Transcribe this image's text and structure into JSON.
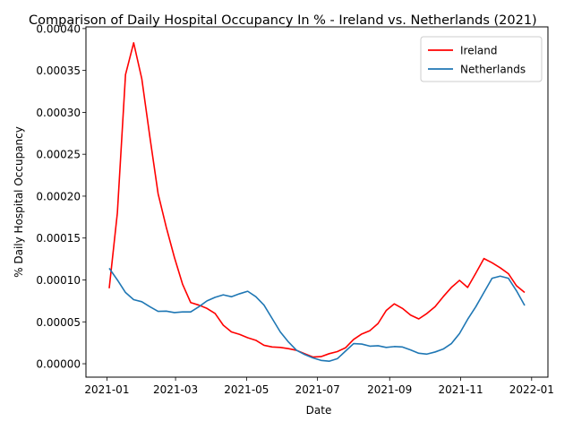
{
  "chart_data": {
    "type": "line",
    "title": "Comparison of Daily Hospital Occupancy In % - Ireland vs. Netherlands (2021)",
    "xlabel": "Date",
    "ylabel": "% Daily Hospital Occupancy",
    "xlim": [
      "2020-12-14",
      "2022-01-15"
    ],
    "ylim": [
      -1.6e-05,
      0.000402
    ],
    "x_ticks": [
      {
        "value": "2021-01-01",
        "label": "2021-01"
      },
      {
        "value": "2021-03-01",
        "label": "2021-03"
      },
      {
        "value": "2021-05-01",
        "label": "2021-05"
      },
      {
        "value": "2021-07-01",
        "label": "2021-07"
      },
      {
        "value": "2021-09-01",
        "label": "2021-09"
      },
      {
        "value": "2021-11-01",
        "label": "2021-11"
      },
      {
        "value": "2022-01-01",
        "label": "2022-01"
      }
    ],
    "y_ticks": [
      {
        "value": 0.0,
        "label": "0.00000"
      },
      {
        "value": 5e-05,
        "label": "0.00005"
      },
      {
        "value": 0.0001,
        "label": "0.00010"
      },
      {
        "value": 0.00015,
        "label": "0.00015"
      },
      {
        "value": 0.0002,
        "label": "0.00020"
      },
      {
        "value": 0.00025,
        "label": "0.00025"
      },
      {
        "value": 0.0003,
        "label": "0.00030"
      },
      {
        "value": 0.00035,
        "label": "0.00035"
      },
      {
        "value": 0.0004,
        "label": "0.00040"
      }
    ],
    "grid": false,
    "legend_position": "top-right",
    "series": [
      {
        "name": "Ireland",
        "color": "#ff0000",
        "x": [
          "2021-01-03",
          "2021-01-10",
          "2021-01-17",
          "2021-01-24",
          "2021-01-31",
          "2021-02-07",
          "2021-02-14",
          "2021-02-21",
          "2021-02-28",
          "2021-03-07",
          "2021-03-14",
          "2021-03-21",
          "2021-03-28",
          "2021-04-04",
          "2021-04-11",
          "2021-04-18",
          "2021-04-25",
          "2021-05-02",
          "2021-05-09",
          "2021-05-16",
          "2021-05-23",
          "2021-05-30",
          "2021-06-06",
          "2021-06-13",
          "2021-06-20",
          "2021-06-27",
          "2021-07-04",
          "2021-07-11",
          "2021-07-18",
          "2021-07-25",
          "2021-08-01",
          "2021-08-08",
          "2021-08-15",
          "2021-08-22",
          "2021-08-29",
          "2021-09-05",
          "2021-09-12",
          "2021-09-19",
          "2021-09-26",
          "2021-10-03",
          "2021-10-10",
          "2021-10-17",
          "2021-10-24",
          "2021-10-31",
          "2021-11-07",
          "2021-11-14",
          "2021-11-21",
          "2021-11-28",
          "2021-12-05",
          "2021-12-12",
          "2021-12-19",
          "2021-12-26"
        ],
        "values": [
          9e-05,
          0.00018,
          0.000345,
          0.000383,
          0.00034,
          0.00027,
          0.000203,
          0.000163,
          0.000127,
          9.5e-05,
          7.3e-05,
          7e-05,
          6.6e-05,
          6e-05,
          4.6e-05,
          3.8e-05,
          3.5e-05,
          3.1e-05,
          2.8e-05,
          2.2e-05,
          2e-05,
          1.95e-05,
          1.8e-05,
          1.6e-05,
          1.2e-05,
          8e-06,
          8.5e-06,
          1.2e-05,
          1.45e-05,
          1.9e-05,
          2.9e-05,
          3.55e-05,
          3.95e-05,
          4.8e-05,
          6.35e-05,
          7.15e-05,
          6.6e-05,
          5.8e-05,
          5.35e-05,
          6e-05,
          6.8e-05,
          8e-05,
          9.1e-05,
          9.95e-05,
          9.1e-05,
          0.000108,
          0.0001255,
          0.0001205,
          0.0001145,
          0.0001075,
          9.3e-05,
          8.5e-05
        ]
      },
      {
        "name": "Netherlands",
        "color": "#1f77b4",
        "x": [
          "2021-01-03",
          "2021-01-10",
          "2021-01-17",
          "2021-01-24",
          "2021-01-31",
          "2021-02-07",
          "2021-02-14",
          "2021-02-21",
          "2021-02-28",
          "2021-03-07",
          "2021-03-14",
          "2021-03-21",
          "2021-03-28",
          "2021-04-04",
          "2021-04-11",
          "2021-04-18",
          "2021-04-25",
          "2021-05-02",
          "2021-05-09",
          "2021-05-16",
          "2021-05-23",
          "2021-05-30",
          "2021-06-06",
          "2021-06-13",
          "2021-06-20",
          "2021-06-27",
          "2021-07-04",
          "2021-07-11",
          "2021-07-18",
          "2021-07-25",
          "2021-08-01",
          "2021-08-08",
          "2021-08-15",
          "2021-08-22",
          "2021-08-29",
          "2021-09-05",
          "2021-09-12",
          "2021-09-19",
          "2021-09-26",
          "2021-10-03",
          "2021-10-10",
          "2021-10-17",
          "2021-10-24",
          "2021-10-31",
          "2021-11-07",
          "2021-11-14",
          "2021-11-21",
          "2021-11-28",
          "2021-12-05",
          "2021-12-12",
          "2021-12-19",
          "2021-12-26"
        ],
        "values": [
          0.000114,
          0.0001,
          8.5e-05,
          7.65e-05,
          7.4e-05,
          6.8e-05,
          6.25e-05,
          6.28e-05,
          6.1e-05,
          6.18e-05,
          6.18e-05,
          6.8e-05,
          7.5e-05,
          7.93e-05,
          8.22e-05,
          8e-05,
          8.35e-05,
          8.65e-05,
          8e-05,
          7e-05,
          5.4e-05,
          3.8e-05,
          2.6e-05,
          1.6e-05,
          1.1e-05,
          7e-06,
          4e-06,
          3e-06,
          6e-06,
          1.5e-05,
          2.4e-05,
          2.35e-05,
          2.1e-05,
          2.15e-05,
          1.95e-05,
          2.05e-05,
          2e-05,
          1.65e-05,
          1.25e-05,
          1.15e-05,
          1.4e-05,
          1.75e-05,
          2.4e-05,
          3.6e-05,
          5.3e-05,
          6.8e-05,
          8.5e-05,
          0.000102,
          0.0001045,
          0.000102,
          8.7e-05,
          6.95e-05
        ]
      }
    ]
  }
}
